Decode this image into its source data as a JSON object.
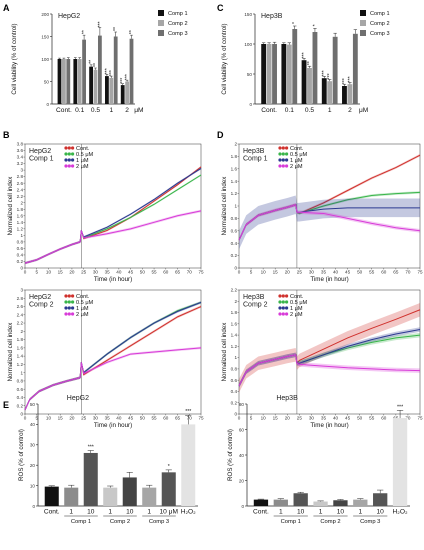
{
  "chart_data": [
    {
      "panel": "A",
      "type": "bar",
      "title": "HepG2",
      "ylabel": "Cell viability (% of control)",
      "ylim": [
        0,
        200
      ],
      "yticks": [
        0,
        50,
        100,
        150,
        200
      ],
      "categories": [
        "Cont.",
        "0.1",
        "0.5",
        "1",
        "2"
      ],
      "unit": "μM",
      "series": [
        {
          "name": "Comp 1",
          "color": "#111111",
          "values": [
            100,
            100,
            83,
            62,
            42
          ],
          "err": [
            2,
            3,
            4,
            4,
            3
          ]
        },
        {
          "name": "Comp 2",
          "color": "#a6a6a6",
          "values": [
            100,
            100,
            76,
            58,
            50
          ],
          "err": [
            2,
            3,
            4,
            4,
            3
          ]
        },
        {
          "name": "Comp 3",
          "color": "#6f6f6f",
          "values": [
            100,
            143,
            152,
            150,
            145
          ],
          "err": [
            3,
            10,
            18,
            10,
            8
          ]
        }
      ],
      "significance": [
        {
          "category": 1,
          "series": 2,
          "label": "**"
        },
        {
          "category": 2,
          "series": 0,
          "label": "**"
        },
        {
          "category": 2,
          "series": 1,
          "label": "**"
        },
        {
          "category": 2,
          "series": 2,
          "label": "***"
        },
        {
          "category": 3,
          "series": 0,
          "label": "***"
        },
        {
          "category": 3,
          "series": 1,
          "label": "***"
        },
        {
          "category": 3,
          "series": 2,
          "label": "**"
        },
        {
          "category": 4,
          "series": 0,
          "label": "***"
        },
        {
          "category": 4,
          "series": 1,
          "label": "***"
        },
        {
          "category": 4,
          "series": 2,
          "label": "**"
        }
      ]
    },
    {
      "panel": "C",
      "type": "bar",
      "title": "Hep3B",
      "ylabel": "Cell viability (% of control)",
      "ylim": [
        0,
        150
      ],
      "yticks": [
        0,
        50,
        100,
        150
      ],
      "categories": [
        "Cont.",
        "0.1",
        "0.5",
        "1",
        "2"
      ],
      "unit": "μM",
      "series": [
        {
          "name": "Comp 1",
          "color": "#111111",
          "values": [
            100,
            100,
            73,
            43,
            30
          ],
          "err": [
            2,
            2,
            3,
            3,
            3
          ]
        },
        {
          "name": "Comp 2",
          "color": "#a6a6a6",
          "values": [
            100,
            99,
            60,
            38,
            33
          ],
          "err": [
            2,
            3,
            3,
            3,
            3
          ]
        },
        {
          "name": "Comp 3",
          "color": "#6f6f6f",
          "values": [
            100,
            125,
            120,
            112,
            117
          ],
          "err": [
            3,
            5,
            6,
            6,
            7
          ]
        }
      ],
      "significance": [
        {
          "category": 1,
          "series": 2,
          "label": "*"
        },
        {
          "category": 2,
          "series": 0,
          "label": "***"
        },
        {
          "category": 2,
          "series": 1,
          "label": "**"
        },
        {
          "category": 2,
          "series": 2,
          "label": "*"
        },
        {
          "category": 3,
          "series": 0,
          "label": "***"
        },
        {
          "category": 3,
          "series": 1,
          "label": "***"
        },
        {
          "category": 4,
          "series": 0,
          "label": "***"
        },
        {
          "category": 4,
          "series": 1,
          "label": "***"
        }
      ]
    },
    {
      "panel": "B",
      "type": "line",
      "title_lines": [
        "HepG2",
        "Comp 1"
      ],
      "xlabel": "Time (in hour)",
      "ylabel": "Normalized cell index",
      "xlim": [
        0,
        75
      ],
      "ylim": [
        0,
        3.8
      ],
      "treatment_time": 24,
      "xticks": [
        0,
        5,
        10,
        15,
        20,
        25,
        30,
        35,
        40,
        45,
        50,
        55,
        60,
        65,
        70,
        75
      ],
      "yticks": [
        0.0,
        0.2,
        0.4,
        0.6,
        0.8,
        1.0,
        1.2,
        1.4,
        1.6,
        1.8,
        2.0,
        2.2,
        2.4,
        2.6,
        2.8,
        3.0,
        3.2,
        3.4,
        3.6,
        3.8
      ],
      "series": [
        {
          "name": "Cont.",
          "color": "#d0312d",
          "band": 0.03,
          "x": [
            0,
            5,
            10,
            15,
            20,
            23.5,
            24,
            25,
            35,
            45,
            55,
            65,
            75
          ],
          "y": [
            0.15,
            0.25,
            0.42,
            0.58,
            0.72,
            0.8,
            1.15,
            0.9,
            1.15,
            1.55,
            2.05,
            2.55,
            3.1
          ]
        },
        {
          "name": "0.5 μM",
          "color": "#39b54a",
          "band": 0.03,
          "x": [
            0,
            5,
            10,
            15,
            20,
            23.5,
            24,
            25,
            35,
            45,
            55,
            65,
            75
          ],
          "y": [
            0.15,
            0.25,
            0.42,
            0.58,
            0.72,
            0.8,
            1.15,
            0.92,
            1.2,
            1.55,
            1.95,
            2.4,
            2.85
          ]
        },
        {
          "name": "1 μM",
          "color": "#2b3990",
          "band": 0.03,
          "x": [
            0,
            5,
            10,
            15,
            20,
            23.5,
            24,
            25,
            35,
            45,
            55,
            65,
            75
          ],
          "y": [
            0.15,
            0.25,
            0.42,
            0.58,
            0.72,
            0.8,
            1.15,
            0.95,
            1.25,
            1.65,
            2.1,
            2.6,
            3.05
          ]
        },
        {
          "name": "2 μM",
          "color": "#d83bd8",
          "band": 0.04,
          "x": [
            0,
            5,
            10,
            15,
            20,
            23.5,
            24,
            25,
            35,
            45,
            55,
            65,
            75
          ],
          "y": [
            0.15,
            0.25,
            0.42,
            0.58,
            0.72,
            0.8,
            1.15,
            0.92,
            1.05,
            1.2,
            1.4,
            1.6,
            1.75
          ]
        }
      ]
    },
    {
      "panel": "D",
      "type": "line",
      "title_lines": [
        "Hep3B",
        "Comp 1"
      ],
      "xlabel": "Time (in hour)",
      "ylabel": "Normalized cell index",
      "xlim": [
        0,
        75
      ],
      "ylim": [
        0,
        2.0
      ],
      "treatment_time": 24,
      "xticks": [
        0,
        5,
        10,
        15,
        20,
        25,
        30,
        35,
        40,
        45,
        50,
        55,
        60,
        65,
        70,
        75
      ],
      "yticks": [
        0.0,
        0.2,
        0.4,
        0.6,
        0.8,
        1.0,
        1.2,
        1.4,
        1.6,
        1.8,
        2.0
      ],
      "series": [
        {
          "name": "Cont.",
          "color": "#d0312d",
          "band": 0.02,
          "x": [
            0,
            3,
            8,
            15,
            20,
            23.5,
            24,
            25,
            35,
            45,
            55,
            65,
            75
          ],
          "y": [
            0.45,
            0.7,
            0.85,
            0.93,
            0.98,
            1.02,
            0.9,
            0.88,
            1.05,
            1.25,
            1.45,
            1.62,
            1.82
          ]
        },
        {
          "name": "0.5 μM",
          "color": "#39b54a",
          "band": 0.02,
          "x": [
            0,
            3,
            8,
            15,
            20,
            23.5,
            24,
            25,
            35,
            45,
            55,
            65,
            75
          ],
          "y": [
            0.45,
            0.7,
            0.85,
            0.93,
            0.98,
            1.02,
            0.9,
            0.88,
            1.0,
            1.1,
            1.17,
            1.2,
            1.22
          ]
        },
        {
          "name": "1 μM",
          "color": "#2b3990",
          "band": 0.15,
          "x": [
            0,
            3,
            8,
            15,
            20,
            23.5,
            24,
            25,
            35,
            45,
            55,
            65,
            75
          ],
          "y": [
            0.45,
            0.7,
            0.85,
            0.93,
            0.98,
            1.02,
            0.9,
            0.9,
            0.95,
            0.97,
            0.97,
            0.97,
            0.97
          ]
        },
        {
          "name": "2 μM",
          "color": "#d83bd8",
          "band": 0.03,
          "x": [
            0,
            3,
            8,
            15,
            20,
            23.5,
            24,
            25,
            35,
            45,
            55,
            65,
            75
          ],
          "y": [
            0.45,
            0.7,
            0.85,
            0.93,
            0.98,
            1.02,
            0.9,
            0.9,
            0.88,
            0.8,
            0.72,
            0.65,
            0.6
          ]
        }
      ]
    },
    {
      "panel": "B-lower",
      "type": "line",
      "title_lines": [
        "HepG2",
        "Comp 2"
      ],
      "xlabel": "Time (in hour)",
      "ylabel": "Normalized cell index",
      "xlim": [
        0,
        75
      ],
      "ylim": [
        0,
        3.0
      ],
      "treatment_time": 24,
      "xticks": [
        0,
        5,
        10,
        15,
        20,
        25,
        30,
        35,
        40,
        45,
        50,
        55,
        60,
        65,
        70,
        75
      ],
      "yticks": [
        0.0,
        0.2,
        0.4,
        0.6,
        0.8,
        1.0,
        1.2,
        1.4,
        1.6,
        1.8,
        2.0,
        2.2,
        2.4,
        2.6,
        2.8,
        3.0
      ],
      "series": [
        {
          "name": "Cont.",
          "color": "#d0312d",
          "band": 0.03,
          "x": [
            0,
            2,
            6,
            12,
            18,
            23.5,
            24,
            25,
            35,
            45,
            55,
            65,
            75
          ],
          "y": [
            0.1,
            0.35,
            0.55,
            0.7,
            0.8,
            0.88,
            1.25,
            0.95,
            1.3,
            1.65,
            2.0,
            2.35,
            2.6
          ]
        },
        {
          "name": "0.5 μM",
          "color": "#39b54a",
          "band": 0.03,
          "x": [
            0,
            2,
            6,
            12,
            18,
            23.5,
            24,
            25,
            35,
            45,
            55,
            65,
            75
          ],
          "y": [
            0.1,
            0.35,
            0.55,
            0.7,
            0.8,
            0.88,
            1.25,
            1.0,
            1.45,
            1.85,
            2.2,
            2.5,
            2.7
          ]
        },
        {
          "name": "1 μM",
          "color": "#2b3990",
          "band": 0.03,
          "x": [
            0,
            2,
            6,
            12,
            18,
            23.5,
            24,
            25,
            35,
            45,
            55,
            65,
            75
          ],
          "y": [
            0.1,
            0.35,
            0.55,
            0.7,
            0.8,
            0.88,
            1.25,
            1.0,
            1.45,
            1.85,
            2.2,
            2.48,
            2.7
          ]
        },
        {
          "name": "2 μM",
          "color": "#d83bd8",
          "band": 0.03,
          "x": [
            0,
            2,
            6,
            12,
            18,
            23.5,
            24,
            25,
            35,
            45,
            55,
            65,
            75
          ],
          "y": [
            0.1,
            0.35,
            0.55,
            0.7,
            0.8,
            0.88,
            1.25,
            0.98,
            1.25,
            1.45,
            1.5,
            1.55,
            1.6
          ]
        }
      ]
    },
    {
      "panel": "D-lower",
      "type": "line",
      "title_lines": [
        "Hep3B",
        "Comp 2"
      ],
      "xlabel": "Time (in hour)",
      "ylabel": "Normalized cell index",
      "xlim": [
        0,
        75
      ],
      "ylim": [
        0,
        2.2
      ],
      "treatment_time": 24,
      "xticks": [
        0,
        5,
        10,
        15,
        20,
        25,
        30,
        35,
        40,
        45,
        50,
        55,
        60,
        65,
        70,
        75
      ],
      "yticks": [
        0.0,
        0.2,
        0.4,
        0.6,
        0.8,
        1.0,
        1.2,
        1.4,
        1.6,
        1.8,
        2.0,
        2.2
      ],
      "series": [
        {
          "name": "Cont.",
          "color": "#d0312d",
          "band": 0.12,
          "x": [
            0,
            3,
            8,
            15,
            20,
            23.5,
            24,
            25,
            35,
            45,
            55,
            65,
            75
          ],
          "y": [
            0.5,
            0.75,
            0.9,
            0.97,
            1.02,
            1.05,
            0.9,
            0.95,
            1.15,
            1.35,
            1.52,
            1.68,
            1.85
          ]
        },
        {
          "name": "0.5 μM",
          "color": "#39b54a",
          "band": 0.04,
          "x": [
            0,
            3,
            8,
            15,
            20,
            23.5,
            24,
            25,
            35,
            45,
            55,
            65,
            75
          ],
          "y": [
            0.5,
            0.75,
            0.9,
            0.97,
            1.02,
            1.05,
            0.9,
            0.9,
            1.05,
            1.17,
            1.27,
            1.35,
            1.4
          ]
        },
        {
          "name": "1 μM",
          "color": "#2b3990",
          "band": 0.04,
          "x": [
            0,
            3,
            8,
            15,
            20,
            23.5,
            24,
            25,
            35,
            45,
            55,
            65,
            75
          ],
          "y": [
            0.5,
            0.75,
            0.9,
            0.97,
            1.02,
            1.05,
            0.9,
            0.9,
            1.05,
            1.2,
            1.32,
            1.42,
            1.5
          ]
        },
        {
          "name": "2 μM",
          "color": "#d83bd8",
          "band": 0.04,
          "x": [
            0,
            3,
            8,
            15,
            20,
            23.5,
            24,
            25,
            35,
            45,
            55,
            65,
            75
          ],
          "y": [
            0.5,
            0.75,
            0.9,
            0.97,
            1.02,
            1.05,
            0.9,
            0.88,
            0.85,
            0.82,
            0.8,
            0.78,
            0.77
          ]
        }
      ]
    },
    {
      "panel": "E",
      "type": "bar",
      "title": "HepG2",
      "ylabel": "ROS (% of control)",
      "ylim": [
        0,
        50
      ],
      "yticks": [
        0,
        10,
        20,
        30,
        40,
        50
      ],
      "categories": [
        "Cont.",
        "1",
        "10",
        "1",
        "10",
        "1",
        "10 μM",
        "H₂O₂"
      ],
      "colors": [
        "#111111",
        "#8c8c8c",
        "#555555",
        "#c8c8c8",
        "#444444",
        "#a6a6a6",
        "#555555",
        "#e3e3e3"
      ],
      "values": [
        9.5,
        9,
        26,
        9,
        14,
        9,
        16.5,
        40
      ],
      "err": [
        0.4,
        1.2,
        1.2,
        0.8,
        2.5,
        1.2,
        1.2,
        4.5
      ],
      "significance": [
        {
          "index": 2,
          "label": "***"
        },
        {
          "index": 6,
          "label": "*"
        },
        {
          "index": 7,
          "label": "***"
        }
      ],
      "groups": [
        {
          "label": "Comp 1",
          "from": 1,
          "to": 2
        },
        {
          "label": "Comp 2",
          "from": 3,
          "to": 4
        },
        {
          "label": "Comp 3",
          "from": 5,
          "to": 6
        }
      ]
    },
    {
      "panel": "E-right",
      "type": "bar",
      "title": "Hep3B",
      "ylabel": "ROS (% of control)",
      "ylim": [
        0,
        80
      ],
      "yticks": [
        0,
        20,
        40,
        60,
        80
      ],
      "categories": [
        "Cont.",
        "1",
        "10",
        "1",
        "10",
        "1",
        "10",
        "H₂O₂"
      ],
      "colors": [
        "#111111",
        "#8c8c8c",
        "#555555",
        "#c8c8c8",
        "#444444",
        "#a6a6a6",
        "#555555",
        "#e3e3e3"
      ],
      "values": [
        5,
        5,
        10,
        3.5,
        4.5,
        5,
        10,
        69
      ],
      "err": [
        0.4,
        0.8,
        0.8,
        0.5,
        0.6,
        0.8,
        2.5,
        6
      ],
      "significance": [
        {
          "index": 7,
          "label": "***"
        }
      ],
      "groups": [
        {
          "label": "Comp 1",
          "from": 1,
          "to": 2
        },
        {
          "label": "Comp 2",
          "from": 3,
          "to": 4
        },
        {
          "label": "Comp 3",
          "from": 5,
          "to": 6
        }
      ]
    }
  ]
}
